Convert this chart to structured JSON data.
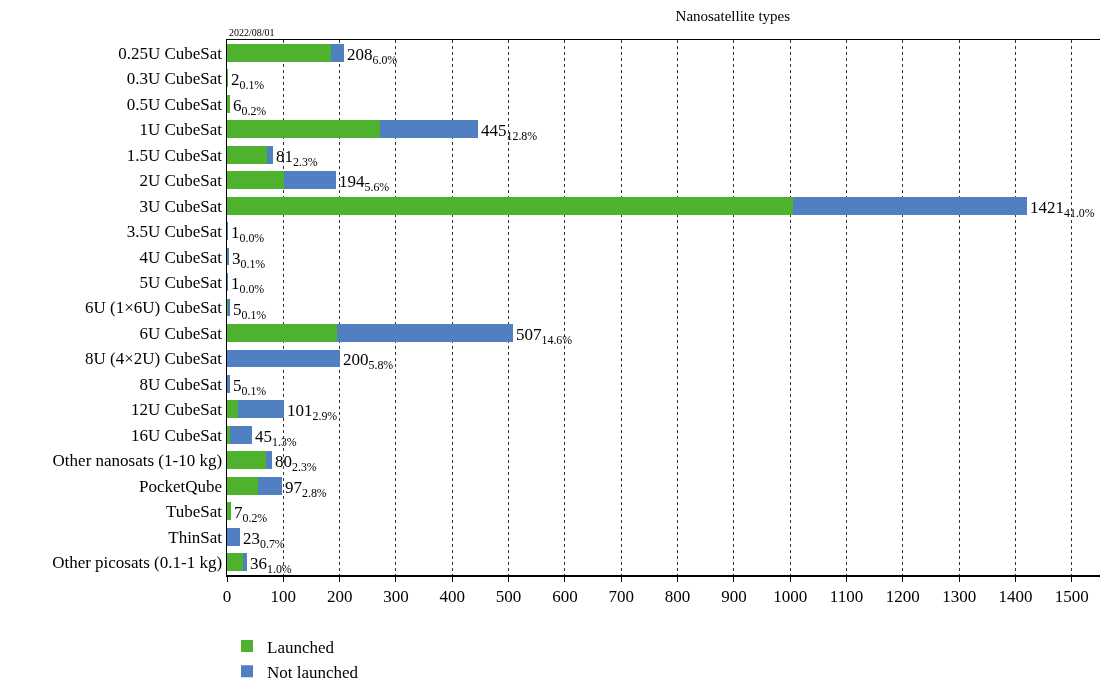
{
  "chart_data": {
    "type": "bar",
    "orientation": "horizontal",
    "stacked": true,
    "title": "Nanosatellite types",
    "annotations": [
      "2022/08/01"
    ],
    "categories": [
      "0.25U CubeSat",
      "0.3U CubeSat",
      "0.5U CubeSat",
      "1U CubeSat",
      "1.5U CubeSat",
      "2U CubeSat",
      "3U CubeSat",
      "3.5U CubeSat",
      "4U CubeSat",
      "5U CubeSat",
      "6U (1×6U) CubeSat",
      "6U CubeSat",
      "8U (4×2U) CubeSat",
      "8U CubeSat",
      "12U CubeSat",
      "16U CubeSat",
      "Other nanosats (1-10 kg)",
      "PocketQube",
      "TubeSat",
      "ThinSat",
      "Other picosats (0.1-1 kg)"
    ],
    "series": [
      {
        "name": "Launched",
        "color": "#4fb22f",
        "values": [
          184,
          2,
          6,
          272,
          71,
          101,
          1005,
          0,
          0,
          0,
          2,
          195,
          0,
          0,
          20,
          5,
          69,
          55,
          7,
          0,
          29
        ]
      },
      {
        "name": "Not launched",
        "color": "#5080c1",
        "values": [
          24,
          0,
          0,
          173,
          10,
          93,
          416,
          1,
          3,
          1,
          3,
          312,
          200,
          5,
          81,
          40,
          11,
          42,
          0,
          23,
          7
        ]
      }
    ],
    "totals": [
      "208$_{6.0%}$",
      "2$_{0.1%}$",
      "6$_{0.2%}$",
      "445$_{12.8%}$",
      "81$_{2.3%}$",
      "194$_{5.6%}$",
      "1421$_{41.0%}$",
      "1$_{0.0%}$",
      "3$_{0.1%}$",
      "1$_{0.0%}$",
      "5$_{0.1%}$",
      "507$_{14.6%}$",
      "200$_{5.8%}$",
      "5$_{0.1%}$",
      "101$_{2.9%}$",
      "45$_{1.3%}$",
      "80$_{2.3%}$",
      "97$_{2.8%}$",
      "7$_{0.2%}$",
      "23$_{0.7%}$",
      "36$_{1.0%}$"
    ],
    "xlim": [
      0,
      1550
    ],
    "xticks": [
      0,
      100,
      200,
      300,
      400,
      500,
      600,
      700,
      800,
      900,
      1000,
      1100,
      1200,
      1300,
      1400,
      1500
    ],
    "grid": "x",
    "legend": "bottom left"
  }
}
